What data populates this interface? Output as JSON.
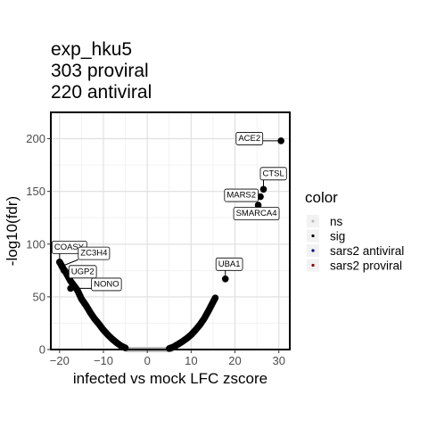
{
  "chart_data": {
    "type": "scatter",
    "title": [
      "exp_hku5",
      "303 proviral",
      "220 antiviral"
    ],
    "xlabel": "infected vs mock LFC zscore",
    "ylabel": "-log10(fdr)",
    "xlim": [
      -22,
      32.5
    ],
    "ylim": [
      0,
      225
    ],
    "x_ticks": [
      -20,
      -10,
      0,
      10,
      20,
      30
    ],
    "y_ticks": [
      0,
      50,
      100,
      150,
      200
    ],
    "grid": true,
    "legend": {
      "title": "color",
      "placement": "right",
      "entries": [
        {
          "label": "ns",
          "color": "#bebebe"
        },
        {
          "label": "sig",
          "color": "#000000"
        },
        {
          "label": "sars2 antiviral",
          "color": "#00008b"
        },
        {
          "label": "sars2 proviral",
          "color": "#8b0000"
        }
      ]
    },
    "ns_segment": {
      "x_from": -4.5,
      "x_to": 5.5,
      "y": 0
    },
    "curve_points": {
      "left": [
        [
          -20,
          83
        ],
        [
          -19.6,
          80
        ],
        [
          -19.2,
          77
        ],
        [
          -18.7,
          74
        ],
        [
          -17.5,
          65
        ],
        [
          -16.6,
          60
        ],
        [
          -15.9,
          56
        ],
        [
          -15,
          48
        ],
        [
          -14,
          42
        ],
        [
          -13,
          35
        ],
        [
          -12,
          29
        ],
        [
          -11,
          24
        ],
        [
          -10,
          18.5
        ],
        [
          -9,
          14
        ],
        [
          -8,
          10
        ],
        [
          -7,
          6.5
        ],
        [
          -6,
          3.5
        ],
        [
          -5,
          1.5
        ]
      ],
      "right": [
        [
          5,
          1
        ],
        [
          6,
          2.5
        ],
        [
          7,
          5
        ],
        [
          8,
          7.5
        ],
        [
          9,
          10.5
        ],
        [
          10,
          14
        ],
        [
          11,
          18.5
        ],
        [
          12,
          23.5
        ],
        [
          13,
          29.5
        ],
        [
          14,
          37
        ],
        [
          15,
          45
        ],
        [
          15.5,
          49
        ]
      ]
    },
    "labeled_points": [
      {
        "label": "ACE2",
        "x": 30.5,
        "y": 198,
        "color": "#000000"
      },
      {
        "label": "CTSL",
        "x": 26.5,
        "y": 152,
        "color": "#000000"
      },
      {
        "label": "MARS2",
        "x": 25.8,
        "y": 145,
        "color": "#000000"
      },
      {
        "label": "SMARCA4",
        "x": 25.3,
        "y": 137,
        "color": "#000000"
      },
      {
        "label": "UBA1",
        "x": 17.8,
        "y": 67,
        "color": "#000000"
      },
      {
        "label": "COASY",
        "x": -20.0,
        "y": 83,
        "color": "#000000"
      },
      {
        "label": "ZC3H4",
        "x": -19.5,
        "y": 79,
        "color": "#000000"
      },
      {
        "label": "UGP2",
        "x": -19.0,
        "y": 75,
        "color": "#000000"
      },
      {
        "label": "NONO",
        "x": -17.5,
        "y": 58,
        "color": "#000000"
      }
    ]
  }
}
